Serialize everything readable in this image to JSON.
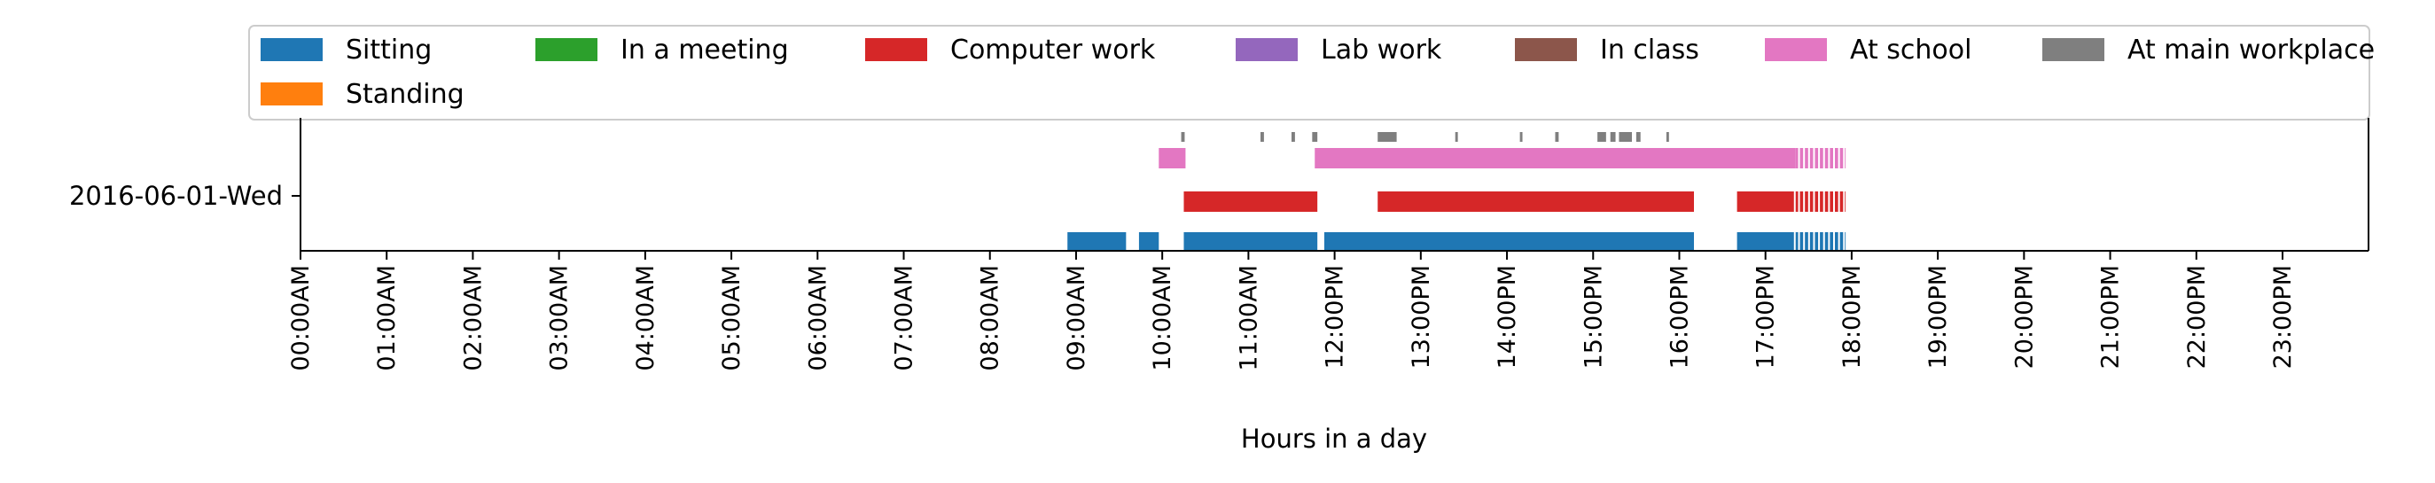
{
  "chart_data": {
    "type": "timeline",
    "xlabel": "Hours in a day",
    "y_category": "2016-06-01-Wed",
    "xlim_hours": [
      0,
      24
    ],
    "tick_labels": [
      "00:00AM",
      "01:00AM",
      "02:00AM",
      "03:00AM",
      "04:00AM",
      "05:00AM",
      "06:00AM",
      "07:00AM",
      "08:00AM",
      "09:00AM",
      "10:00AM",
      "11:00AM",
      "12:00PM",
      "13:00PM",
      "14:00PM",
      "15:00PM",
      "16:00PM",
      "17:00PM",
      "18:00PM",
      "19:00PM",
      "20:00PM",
      "21:00PM",
      "22:00PM",
      "23:00PM"
    ],
    "legend_placement": "top",
    "legend": [
      {
        "name": "Sitting",
        "color": "#1f77b4"
      },
      {
        "name": "In a meeting",
        "color": "#2ca02c"
      },
      {
        "name": "Computer work",
        "color": "#d62728"
      },
      {
        "name": "Lab work",
        "color": "#9467bd"
      },
      {
        "name": "In class",
        "color": "#8c564b"
      },
      {
        "name": "At school",
        "color": "#e377c2"
      },
      {
        "name": "At main workplace",
        "color": "#7f7f7f"
      },
      {
        "name": "Standing",
        "color": "#ff7f0e"
      }
    ],
    "series": [
      {
        "name": "Sitting",
        "color": "#1f77b4",
        "row": "sitting",
        "intervals": [
          [
            8.9,
            9.58
          ],
          [
            9.73,
            9.96
          ],
          [
            10.25,
            11.8
          ],
          [
            11.88,
            16.17
          ],
          [
            16.67,
            17.33
          ],
          [
            17.35,
            17.93
          ]
        ]
      },
      {
        "name": "Computer work",
        "color": "#d62728",
        "row": "computer",
        "intervals": [
          [
            10.25,
            11.8
          ],
          [
            12.5,
            16.17
          ],
          [
            16.67,
            17.33
          ],
          [
            17.35,
            17.93
          ]
        ]
      },
      {
        "name": "At school",
        "color": "#e377c2",
        "row": "school",
        "intervals": [
          [
            9.96,
            10.27
          ],
          [
            11.77,
            17.35
          ],
          [
            17.35,
            17.93
          ]
        ]
      },
      {
        "name": "At main workplace",
        "color": "#7f7f7f",
        "row": "workplace",
        "intervals": [
          [
            10.22,
            10.26
          ],
          [
            11.14,
            11.18
          ],
          [
            11.5,
            11.54
          ],
          [
            11.74,
            11.8
          ],
          [
            12.5,
            12.72
          ],
          [
            13.4,
            13.43
          ],
          [
            14.15,
            14.18
          ],
          [
            14.56,
            14.6
          ],
          [
            15.05,
            15.15
          ],
          [
            15.2,
            15.26
          ],
          [
            15.3,
            15.45
          ],
          [
            15.5,
            15.55
          ],
          [
            15.85,
            15.88
          ]
        ]
      }
    ],
    "dense_tail": {
      "start_hour": 17.35,
      "end_hour": 17.93,
      "gaps": 10
    }
  }
}
